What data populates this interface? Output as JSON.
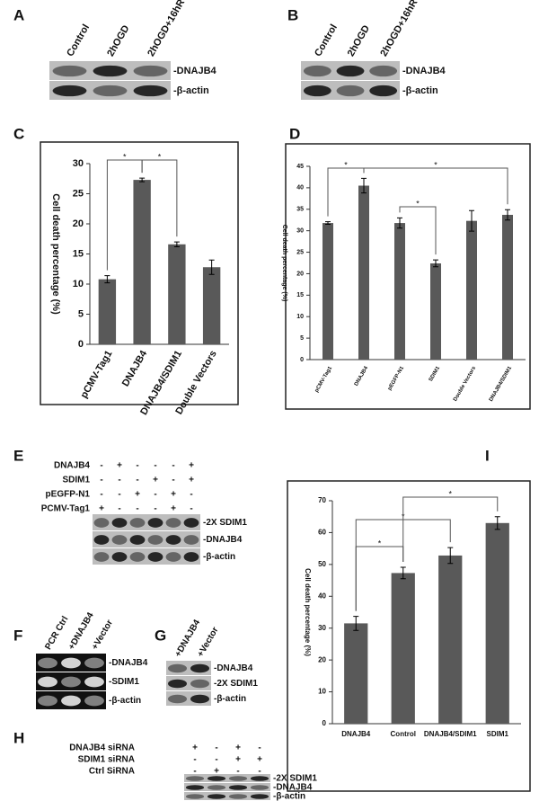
{
  "panel_letters": [
    "A",
    "B",
    "C",
    "D",
    "E",
    "F",
    "G",
    "H",
    "I"
  ],
  "blot_a": {
    "lanes": [
      "Control",
      "2hOGD",
      "2hOGD+16hR"
    ],
    "bands": [
      "-DNAJB4",
      "-β-actin"
    ]
  },
  "blot_b": {
    "lanes": [
      "Control",
      "2hOGD",
      "2hOGD+16hR"
    ],
    "bands": [
      "-DNAJB4",
      "-β-actin"
    ]
  },
  "blot_e": {
    "conditions": [
      {
        "label": "DNAJB4",
        "signs": [
          "-",
          "+",
          "-",
          "-",
          "-",
          "+"
        ]
      },
      {
        "label": "SDIM1",
        "signs": [
          "-",
          "-",
          "-",
          "+",
          "-",
          "+"
        ]
      },
      {
        "label": "pEGFP-N1",
        "signs": [
          "-",
          "-",
          "+",
          "-",
          "+",
          "-"
        ]
      },
      {
        "label": "PCMV-Tag1",
        "signs": [
          "+",
          "-",
          "-",
          "-",
          "+",
          "-"
        ]
      }
    ],
    "bands": [
      "-2X SDIM1",
      "-DNAJB4",
      "-β-actin"
    ]
  },
  "blot_f": {
    "lanes": [
      "PCR Ctrl",
      "+DNAJB4",
      "+Vector"
    ],
    "bands": [
      "-DNAJB4",
      "-SDIM1",
      "-β-actin"
    ]
  },
  "blot_g": {
    "lanes": [
      "+DNAJB4",
      "+Vector"
    ],
    "bands": [
      "-DNAJB4",
      "-2X SDIM1",
      "-β-actin"
    ]
  },
  "blot_h": {
    "conditions": [
      {
        "label": "DNAJB4 siRNA",
        "signs": [
          "+",
          "-",
          "+",
          "-"
        ]
      },
      {
        "label": "SDIM1 siRNA",
        "signs": [
          "-",
          "-",
          "+",
          "+"
        ]
      },
      {
        "label": "Ctrl SiRNA",
        "signs": [
          "-",
          "+",
          "-",
          "-"
        ]
      }
    ],
    "bands": [
      "-2X SDIM1",
      "-DNAJB4",
      "-β-actin"
    ]
  },
  "chart_data": [
    {
      "type": "bar",
      "y_label": "Cell death percentage (%)",
      "categories": [
        "pCMV-Tag1",
        "DNAJB4",
        "DNAJB4/SDIM1",
        "Double Vectors"
      ],
      "values": [
        10.8,
        27.3,
        16.6,
        12.8
      ],
      "errors": [
        0.6,
        0.3,
        0.4,
        1.2
      ],
      "color": "#595959",
      "ylim": [
        0,
        30
      ],
      "yticks": [
        0,
        5,
        10,
        15,
        20,
        25,
        30
      ],
      "annotations": [
        "*",
        "*"
      ]
    },
    {
      "type": "bar",
      "y_label": "Cell death percentage (%)",
      "categories": [
        "pCMV-Tag1",
        "DNAJB4",
        "pEGFP-N1",
        "SDIM1",
        "Double Vectors",
        "DNAJB4/SDIM1"
      ],
      "values": [
        31.8,
        40.5,
        31.8,
        22.4,
        32.3,
        33.7
      ],
      "errors": [
        0.3,
        1.7,
        1.2,
        0.8,
        2.4,
        1.2
      ],
      "color": "#595959",
      "ylim": [
        0,
        45
      ],
      "yticks": [
        0,
        5,
        10,
        15,
        20,
        25,
        30,
        35,
        40,
        45
      ],
      "annotations": [
        "*",
        "*",
        "*"
      ]
    },
    {
      "type": "bar",
      "y_label": "Cell death percentage (%)",
      "categories": [
        "DNAJB4",
        "Control",
        "DNAJB4/SDIM1",
        "SDIM1"
      ],
      "values": [
        31.5,
        47.3,
        52.8,
        63.0
      ],
      "errors": [
        2.2,
        1.8,
        2.5,
        2.0
      ],
      "color": "#595959",
      "ylim": [
        0,
        70
      ],
      "yticks": [
        0,
        10,
        20,
        30,
        40,
        50,
        60,
        70
      ],
      "annotations": [
        "*",
        "*",
        "*"
      ]
    }
  ]
}
